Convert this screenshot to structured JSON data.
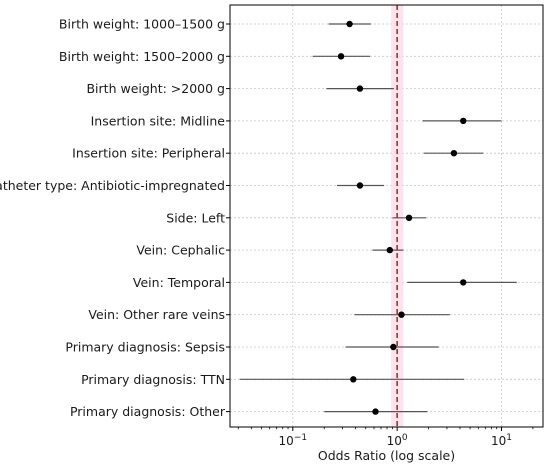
{
  "chart_data": {
    "type": "scatter",
    "subtype": "forest-plot",
    "title": "",
    "xlabel": "Odds Ratio (log scale)",
    "ylabel": "",
    "x_scale": "log",
    "xlim": [
      0.025,
      25
    ],
    "x_tick_labels": [
      "10",
      "10",
      "10"
    ],
    "x_tick_exponents": [
      "−1",
      "0",
      "1"
    ],
    "x_tick_values": [
      0.1,
      1,
      10
    ],
    "grid": true,
    "reference_line": {
      "x": 1.0,
      "style": "dashed",
      "color": "#8b4513",
      "band_color": "#ffd6e7"
    },
    "point_color": "#000000",
    "ci_color": "#555555",
    "categories": [
      "Birth weight: 1000–1500 g",
      "Birth weight: 1500–2000 g",
      "Birth weight: >2000 g",
      "Insertion site: Midline",
      "Insertion site: Peripheral",
      "Catheter type: Antibiotic-impregnated",
      "Side: Left",
      "Vein: Cephalic",
      "Vein: Temporal",
      "Vein: Other rare veins",
      "Primary diagnosis: Sepsis",
      "Primary diagnosis: TTN",
      "Primary diagnosis: Other"
    ],
    "estimates": [
      0.35,
      0.29,
      0.44,
      4.3,
      3.5,
      0.44,
      1.3,
      0.85,
      4.3,
      1.1,
      0.92,
      0.38,
      0.62
    ],
    "ci_lower": [
      0.22,
      0.155,
      0.21,
      1.75,
      1.8,
      0.265,
      0.9,
      0.58,
      1.25,
      0.39,
      0.32,
      0.031,
      0.2
    ],
    "ci_upper": [
      0.56,
      0.55,
      0.93,
      10.0,
      6.7,
      0.75,
      1.9,
      1.15,
      14.0,
      3.2,
      2.5,
      4.4,
      1.95
    ]
  }
}
